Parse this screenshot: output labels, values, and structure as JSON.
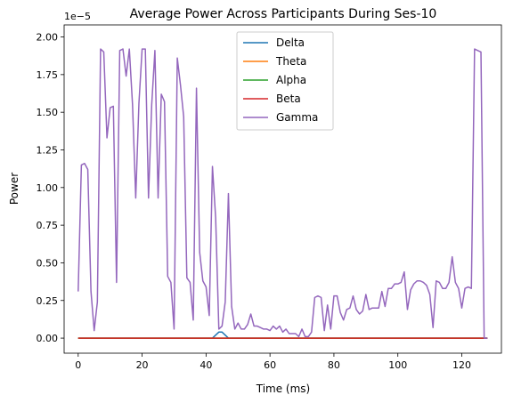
{
  "chart_data": {
    "type": "line",
    "title": "Average Power Across Participants During Ses-10",
    "xlabel": "Time (ms)",
    "ylabel": "Power",
    "y_offset_label": "1e−5",
    "xlim": [
      -4.4,
      132.4
    ],
    "ylim": [
      -0.1,
      2.08
    ],
    "y_scale_note": "values in units of 1e-5",
    "xticks": [
      0,
      20,
      40,
      60,
      80,
      100,
      120
    ],
    "xtick_labels": [
      "0",
      "20",
      "40",
      "60",
      "80",
      "100",
      "120"
    ],
    "yticks": [
      0,
      0.25,
      0.5,
      0.75,
      1.0,
      1.25,
      1.5,
      1.75,
      2.0
    ],
    "ytick_labels": [
      "0.00",
      "0.25",
      "0.50",
      "0.75",
      "1.00",
      "1.25",
      "1.50",
      "1.75",
      "2.00"
    ],
    "grid": false,
    "legend_position": "upper-center",
    "series": [
      {
        "name": "Delta",
        "color": "#1f77b4",
        "x": [
          0,
          42,
          43,
          44,
          45,
          46,
          47,
          128
        ],
        "y": [
          0,
          0,
          0.02,
          0.04,
          0.04,
          0.02,
          0,
          0
        ]
      },
      {
        "name": "Theta",
        "color": "#ff7f0e",
        "x": [
          0,
          128
        ],
        "y": [
          0,
          0
        ]
      },
      {
        "name": "Alpha",
        "color": "#2ca02c",
        "x": [
          0,
          128
        ],
        "y": [
          0,
          0
        ]
      },
      {
        "name": "Beta",
        "color": "#d62728",
        "x": [
          0,
          128
        ],
        "y": [
          0,
          0
        ]
      },
      {
        "name": "Gamma",
        "color": "#9467bd",
        "x": [
          0,
          1,
          2,
          3,
          4,
          5,
          6,
          7,
          8,
          9,
          10,
          11,
          12,
          13,
          14,
          15,
          16,
          17,
          18,
          19,
          20,
          21,
          22,
          23,
          24,
          25,
          26,
          27,
          28,
          29,
          30,
          31,
          32,
          33,
          34,
          35,
          36,
          37,
          38,
          39,
          40,
          41,
          42,
          43,
          44,
          45,
          46,
          47,
          48,
          49,
          50,
          51,
          52,
          53,
          54,
          55,
          56,
          57,
          58,
          59,
          60,
          61,
          62,
          63,
          64,
          65,
          66,
          67,
          68,
          69,
          70,
          71,
          72,
          73,
          74,
          75,
          76,
          77,
          78,
          79,
          80,
          81,
          82,
          83,
          84,
          85,
          86,
          87,
          88,
          89,
          90,
          91,
          92,
          93,
          94,
          95,
          96,
          97,
          98,
          99,
          100,
          101,
          102,
          103,
          104,
          105,
          106,
          107,
          108,
          109,
          110,
          111,
          112,
          113,
          114,
          115,
          116,
          117,
          118,
          119,
          120,
          121,
          122,
          123,
          124,
          125,
          126,
          127,
          128
        ],
        "y": [
          0.31,
          1.15,
          1.16,
          1.12,
          0.31,
          0.05,
          0.24,
          1.92,
          1.9,
          1.33,
          1.53,
          1.54,
          0.37,
          1.91,
          1.92,
          1.74,
          1.92,
          1.55,
          0.93,
          1.56,
          1.92,
          1.92,
          0.93,
          1.55,
          1.91,
          0.93,
          1.62,
          1.57,
          0.41,
          0.37,
          0.06,
          1.86,
          1.68,
          1.47,
          0.4,
          0.37,
          0.12,
          1.66,
          0.57,
          0.38,
          0.34,
          0.15,
          1.14,
          0.8,
          0.06,
          0.08,
          0.24,
          0.96,
          0.21,
          0.06,
          0.1,
          0.06,
          0.06,
          0.09,
          0.16,
          0.08,
          0.08,
          0.07,
          0.06,
          0.06,
          0.05,
          0.08,
          0.06,
          0.08,
          0.04,
          0.06,
          0.03,
          0.03,
          0.03,
          0.01,
          0.06,
          0.01,
          0.01,
          0.04,
          0.27,
          0.28,
          0.27,
          0.05,
          0.22,
          0.06,
          0.28,
          0.28,
          0.17,
          0.12,
          0.19,
          0.2,
          0.28,
          0.19,
          0.16,
          0.18,
          0.29,
          0.19,
          0.2,
          0.2,
          0.2,
          0.31,
          0.21,
          0.33,
          0.33,
          0.36,
          0.36,
          0.37,
          0.44,
          0.19,
          0.32,
          0.36,
          0.38,
          0.38,
          0.37,
          0.35,
          0.29,
          0.07,
          0.38,
          0.37,
          0.33,
          0.33,
          0.37,
          0.54,
          0.37,
          0.33,
          0.2,
          0.33,
          0.34,
          0.33,
          1.92,
          1.91,
          1.9,
          0.0,
          0.0
        ]
      }
    ]
  }
}
